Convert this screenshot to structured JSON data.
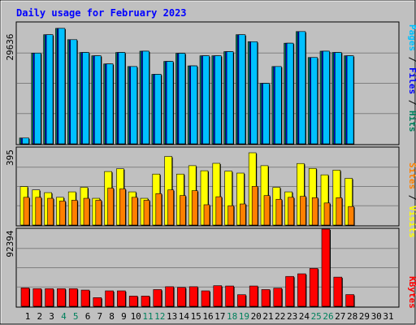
{
  "chart_data": [
    {
      "type": "bar",
      "panel": "hits-files-pages",
      "title": "Daily usage for February 2023",
      "ymax_label": "29636",
      "ylim": [
        0,
        29636
      ],
      "legend": {
        "parts": [
          {
            "text": "Pages",
            "color": "#00c0ff"
          },
          {
            "text": "Files",
            "color": "#0000ff"
          },
          {
            "text": "Hits",
            "color": "#00805c"
          }
        ],
        "separator": " / ",
        "placement": "right-vertical"
      },
      "categories": [
        "1",
        "2",
        "3",
        "4",
        "5",
        "6",
        "7",
        "8",
        "9",
        "10",
        "11",
        "12",
        "13",
        "14",
        "15",
        "16",
        "17",
        "18",
        "19",
        "20",
        "21",
        "22",
        "23",
        "24",
        "25",
        "26",
        "27",
        "28",
        "29",
        "30",
        "31"
      ],
      "series": [
        {
          "name": "Hits",
          "color": "#00805c",
          "values": [
            1430,
            22210,
            26710,
            28260,
            25500,
            22360,
            21550,
            19560,
            22360,
            18920,
            22680,
            17010,
            20170,
            22150,
            19080,
            21550,
            21550,
            22570,
            26710,
            25000,
            14800,
            18920,
            24630,
            27480,
            21130,
            22680,
            22360,
            21550,
            null,
            null,
            null
          ]
        },
        {
          "name": "Files",
          "color": "#0000ff",
          "values": [
            1430,
            22210,
            26710,
            28260,
            25500,
            22360,
            21550,
            19560,
            22360,
            18920,
            22680,
            17010,
            20170,
            22150,
            19080,
            21550,
            21550,
            22570,
            26710,
            25000,
            14800,
            18920,
            24630,
            27480,
            21130,
            22680,
            22360,
            21550,
            null,
            null,
            null
          ]
        },
        {
          "name": "Pages",
          "color": "#00c0ff",
          "values": [
            1430,
            22210,
            26710,
            28260,
            25500,
            22360,
            21550,
            19560,
            22360,
            18920,
            22680,
            17010,
            20170,
            22150,
            19080,
            21550,
            21550,
            22570,
            26710,
            25000,
            14800,
            18920,
            24630,
            27480,
            21130,
            22680,
            22360,
            21550,
            null,
            null,
            null
          ]
        }
      ]
    },
    {
      "type": "bar",
      "panel": "visits-sites",
      "ymax_label": "395",
      "ylim": [
        0,
        395
      ],
      "legend": {
        "parts": [
          {
            "text": "Sites",
            "color": "#ff8000"
          },
          {
            "text": "Visits",
            "color": "#ffff00"
          }
        ],
        "separator": " / ",
        "placement": "right-vertical"
      },
      "series": [
        {
          "name": "Visits",
          "color": "#ffff00",
          "values": [
            197,
            180,
            166,
            142,
            170,
            193,
            137,
            274,
            288,
            170,
            137,
            261,
            351,
            261,
            304,
            278,
            316,
            276,
            266,
            370,
            304,
            193,
            170,
            315,
            290,
            257,
            281,
            239,
            null,
            null,
            null
          ]
        },
        {
          "name": "Sites",
          "color": "#ff8000",
          "values": [
            142,
            142,
            137,
            123,
            127,
            137,
            127,
            189,
            185,
            142,
            127,
            161,
            180,
            151,
            176,
            104,
            145,
            99,
            108,
            198,
            151,
            132,
            142,
            147,
            140,
            113,
            140,
            95,
            null,
            null,
            null
          ]
        }
      ]
    },
    {
      "type": "bar",
      "panel": "kbytes",
      "ymax_label": "92394",
      "ylim": [
        0,
        92394
      ],
      "legend": {
        "parts": [
          {
            "text": "KBytes",
            "color": "#ff0000"
          }
        ],
        "separator": "",
        "placement": "right-vertical"
      },
      "series": [
        {
          "name": "KBytes",
          "color": "#ff0000",
          "values": [
            21980,
            21120,
            21120,
            21120,
            21120,
            19420,
            10380,
            18500,
            18500,
            12230,
            12230,
            20050,
            23450,
            22600,
            23450,
            18500,
            24710,
            24300,
            13900,
            24300,
            20050,
            21750,
            35770,
            38910,
            45300,
            92394,
            34920,
            14040,
            null,
            null,
            null
          ]
        }
      ]
    }
  ],
  "day_labels": [
    {
      "text": "1",
      "weekend": false
    },
    {
      "text": "2",
      "weekend": false
    },
    {
      "text": "3",
      "weekend": false
    },
    {
      "text": "4",
      "weekend": true
    },
    {
      "text": "5",
      "weekend": true
    },
    {
      "text": "6",
      "weekend": false
    },
    {
      "text": "7",
      "weekend": false
    },
    {
      "text": "8",
      "weekend": false
    },
    {
      "text": "9",
      "weekend": false
    },
    {
      "text": "10",
      "weekend": false
    },
    {
      "text": "11",
      "weekend": true
    },
    {
      "text": "12",
      "weekend": true
    },
    {
      "text": "13",
      "weekend": false
    },
    {
      "text": "14",
      "weekend": false
    },
    {
      "text": "15",
      "weekend": false
    },
    {
      "text": "16",
      "weekend": false
    },
    {
      "text": "17",
      "weekend": false
    },
    {
      "text": "18",
      "weekend": true
    },
    {
      "text": "19",
      "weekend": true
    },
    {
      "text": "20",
      "weekend": false
    },
    {
      "text": "21",
      "weekend": false
    },
    {
      "text": "22",
      "weekend": false
    },
    {
      "text": "23",
      "weekend": false
    },
    {
      "text": "24",
      "weekend": false
    },
    {
      "text": "25",
      "weekend": true
    },
    {
      "text": "26",
      "weekend": true
    },
    {
      "text": "27",
      "weekend": false
    },
    {
      "text": "28",
      "weekend": false
    },
    {
      "text": "29",
      "weekend": false
    },
    {
      "text": "30",
      "weekend": false
    },
    {
      "text": "31",
      "weekend": false
    }
  ],
  "colors": {
    "background": "#c0c0c0",
    "title": "#0000ff",
    "weekday_label": "#000000",
    "weekend_label": "#00805c",
    "gridline": "#808080"
  }
}
